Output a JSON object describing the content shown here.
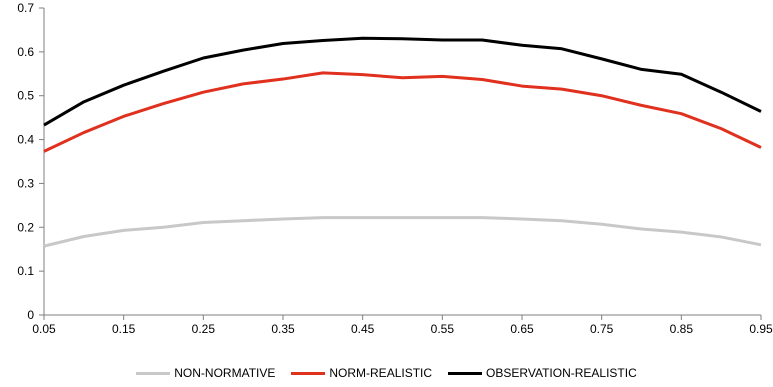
{
  "chart_data": {
    "type": "line",
    "title": "",
    "xlabel": "",
    "ylabel": "",
    "x": [
      0.05,
      0.1,
      0.15,
      0.2,
      0.25,
      0.3,
      0.35,
      0.4,
      0.45,
      0.5,
      0.55,
      0.6,
      0.65,
      0.7,
      0.75,
      0.8,
      0.85,
      0.9,
      0.95
    ],
    "x_tick_labels": [
      "0.05",
      "0.15",
      "0.25",
      "0.35",
      "0.45",
      "0.55",
      "0.65",
      "0.75",
      "0.85",
      "0.95"
    ],
    "x_tick_values": [
      0.05,
      0.15,
      0.25,
      0.35,
      0.45,
      0.55,
      0.65,
      0.75,
      0.85,
      0.95
    ],
    "xlim": [
      0.05,
      0.95
    ],
    "y_tick_labels": [
      "0",
      "0.1",
      "0.2",
      "0.3",
      "0.4",
      "0.5",
      "0.6",
      "0.7"
    ],
    "y_tick_values": [
      0,
      0.1,
      0.2,
      0.3,
      0.4,
      0.5,
      0.6,
      0.7
    ],
    "ylim": [
      0,
      0.7
    ],
    "grid": false,
    "legend_position": "bottom",
    "series": [
      {
        "name": "NON-NORMATIVE",
        "color": "#c8c8c8",
        "values": [
          0.157,
          0.179,
          0.193,
          0.2,
          0.211,
          0.215,
          0.219,
          0.222,
          0.222,
          0.222,
          0.222,
          0.222,
          0.219,
          0.215,
          0.207,
          0.196,
          0.189,
          0.178,
          0.16
        ]
      },
      {
        "name": "NORM-REALISTIC",
        "color": "#e0301e",
        "values": [
          0.373,
          0.416,
          0.453,
          0.482,
          0.508,
          0.527,
          0.538,
          0.552,
          0.548,
          0.541,
          0.544,
          0.537,
          0.522,
          0.515,
          0.5,
          0.478,
          0.459,
          0.425,
          0.382
        ]
      },
      {
        "name": "OBSERVATION-REALISTIC",
        "color": "#000000",
        "values": [
          0.433,
          0.486,
          0.524,
          0.556,
          0.586,
          0.604,
          0.619,
          0.626,
          0.631,
          0.63,
          0.627,
          0.627,
          0.615,
          0.607,
          0.584,
          0.56,
          0.549,
          0.508,
          0.464
        ]
      }
    ]
  }
}
